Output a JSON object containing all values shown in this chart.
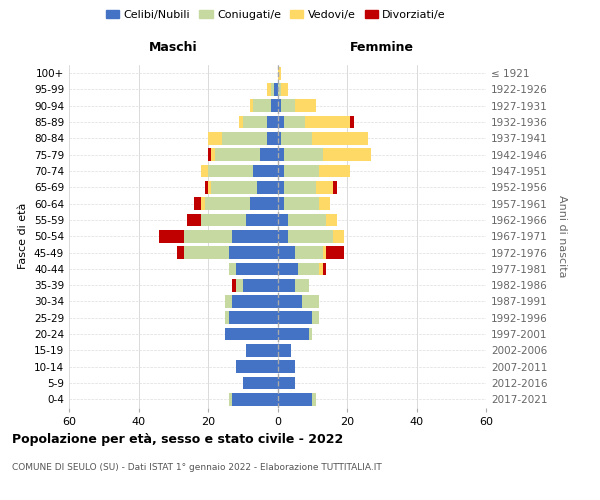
{
  "age_groups": [
    "0-4",
    "5-9",
    "10-14",
    "15-19",
    "20-24",
    "25-29",
    "30-34",
    "35-39",
    "40-44",
    "45-49",
    "50-54",
    "55-59",
    "60-64",
    "65-69",
    "70-74",
    "75-79",
    "80-84",
    "85-89",
    "90-94",
    "95-99",
    "100+"
  ],
  "birth_years": [
    "2017-2021",
    "2012-2016",
    "2007-2011",
    "2002-2006",
    "1997-2001",
    "1992-1996",
    "1987-1991",
    "1982-1986",
    "1977-1981",
    "1972-1976",
    "1967-1971",
    "1962-1966",
    "1957-1961",
    "1952-1956",
    "1947-1951",
    "1942-1946",
    "1937-1941",
    "1932-1936",
    "1927-1931",
    "1922-1926",
    "≤ 1921"
  ],
  "males": {
    "celibe": [
      13,
      10,
      12,
      9,
      15,
      14,
      13,
      10,
      12,
      14,
      13,
      9,
      8,
      6,
      7,
      5,
      3,
      3,
      2,
      1,
      0
    ],
    "coniugato": [
      1,
      0,
      0,
      0,
      0,
      1,
      2,
      2,
      2,
      13,
      14,
      13,
      13,
      13,
      13,
      13,
      13,
      7,
      5,
      1,
      0
    ],
    "vedovo": [
      0,
      0,
      0,
      0,
      0,
      0,
      0,
      0,
      0,
      0,
      0,
      0,
      1,
      1,
      2,
      1,
      4,
      1,
      1,
      1,
      0
    ],
    "divorziato": [
      0,
      0,
      0,
      0,
      0,
      0,
      0,
      1,
      0,
      2,
      7,
      4,
      2,
      1,
      0,
      1,
      0,
      0,
      0,
      0,
      0
    ]
  },
  "females": {
    "nubile": [
      10,
      5,
      5,
      4,
      9,
      10,
      7,
      5,
      6,
      5,
      3,
      3,
      2,
      2,
      2,
      2,
      1,
      2,
      1,
      0,
      0
    ],
    "coniugata": [
      1,
      0,
      0,
      0,
      1,
      2,
      5,
      4,
      6,
      8,
      13,
      11,
      10,
      9,
      10,
      11,
      9,
      6,
      4,
      1,
      0
    ],
    "vedova": [
      0,
      0,
      0,
      0,
      0,
      0,
      0,
      0,
      1,
      1,
      3,
      3,
      3,
      5,
      9,
      14,
      16,
      13,
      6,
      2,
      1
    ],
    "divorziata": [
      0,
      0,
      0,
      0,
      0,
      0,
      0,
      0,
      1,
      5,
      0,
      0,
      0,
      1,
      0,
      0,
      0,
      1,
      0,
      0,
      0
    ]
  },
  "colors": {
    "celibe": "#4472C4",
    "coniugato": "#C5D9A0",
    "vedovo": "#FFD966",
    "divorziato": "#C00000"
  },
  "xlim": 60,
  "title": "Popolazione per età, sesso e stato civile - 2022",
  "subtitle": "COMUNE DI SEULO (SU) - Dati ISTAT 1° gennaio 2022 - Elaborazione TUTTITALIA.IT",
  "xlabel_left": "Maschi",
  "xlabel_right": "Femmine",
  "ylabel_left": "Fasce di età",
  "ylabel_right": "Anni di nascita",
  "legend_labels": [
    "Celibi/Nubili",
    "Coniugati/e",
    "Vedovi/e",
    "Divorziati/e"
  ],
  "background_color": "#ffffff",
  "grid_color": "#cccccc"
}
